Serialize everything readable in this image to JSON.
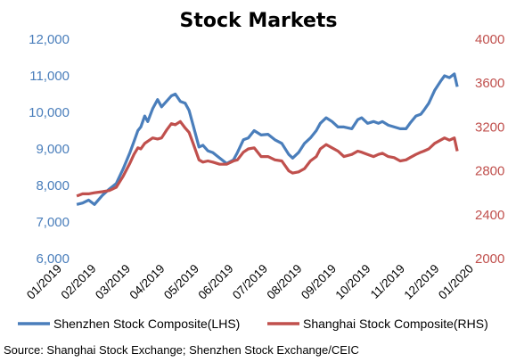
{
  "chart_data": {
    "type": "line",
    "title": "Stock Markets",
    "source": "Source: Shanghai Stock Exchange; Shenzhen Stock Exchange/CEIC",
    "x_ticks": [
      "01/2019",
      "02/2019",
      "03/2019",
      "04/2019",
      "05/2019",
      "06/2019",
      "07/2019",
      "08/2019",
      "09/2019",
      "10/2019",
      "11/2019",
      "12/2019",
      "01/2020"
    ],
    "xlim": [
      "2019-01-01",
      "2020-01-31"
    ],
    "left_axis": {
      "ylim": [
        6000,
        12000
      ],
      "ticks": [
        "6,000",
        "7,000",
        "8,000",
        "9,000",
        "10,000",
        "11,000",
        "12,000"
      ],
      "color": "#4a7ebb"
    },
    "right_axis": {
      "ylim": [
        2000,
        4000
      ],
      "ticks": [
        "2000",
        "2400",
        "2800",
        "3200",
        "3600",
        "4000"
      ],
      "color": "#c0504d"
    },
    "legend_position": "bottom",
    "grid": false,
    "series": [
      {
        "name": "Shenzhen Stock Composite(LHS)",
        "axis": "left",
        "color": "#4a7ebb",
        "x": [
          "2019-01-02",
          "2019-01-08",
          "2019-01-14",
          "2019-01-20",
          "2019-01-28",
          "2019-02-04",
          "2019-02-11",
          "2019-02-18",
          "2019-02-25",
          "2019-03-01",
          "2019-03-05",
          "2019-03-08",
          "2019-03-12",
          "2019-03-15",
          "2019-03-20",
          "2019-03-25",
          "2019-03-29",
          "2019-04-03",
          "2019-04-08",
          "2019-04-12",
          "2019-04-17",
          "2019-04-22",
          "2019-04-26",
          "2019-04-30",
          "2019-05-06",
          "2019-05-10",
          "2019-05-15",
          "2019-05-20",
          "2019-05-27",
          "2019-06-03",
          "2019-06-10",
          "2019-06-14",
          "2019-06-20",
          "2019-06-25",
          "2019-07-01",
          "2019-07-08",
          "2019-07-15",
          "2019-07-22",
          "2019-07-29",
          "2019-08-05",
          "2019-08-09",
          "2019-08-15",
          "2019-08-21",
          "2019-08-27",
          "2019-09-02",
          "2019-09-06",
          "2019-09-12",
          "2019-09-18",
          "2019-09-24",
          "2019-09-30",
          "2019-10-08",
          "2019-10-14",
          "2019-10-18",
          "2019-10-24",
          "2019-10-30",
          "2019-11-04",
          "2019-11-08",
          "2019-11-14",
          "2019-11-20",
          "2019-11-26",
          "2019-12-02",
          "2019-12-06",
          "2019-12-12",
          "2019-12-17",
          "2019-12-20",
          "2019-12-25",
          "2019-12-31",
          "2020-01-06",
          "2020-01-10",
          "2020-01-15",
          "2020-01-20",
          "2020-01-23"
        ],
        "values": [
          7480,
          7520,
          7600,
          7480,
          7730,
          7900,
          8050,
          8450,
          8900,
          9200,
          9500,
          9600,
          9900,
          9750,
          10100,
          10350,
          10150,
          10300,
          10450,
          10500,
          10300,
          10250,
          10050,
          9650,
          9050,
          9100,
          8950,
          8900,
          8750,
          8600,
          8700,
          8900,
          9250,
          9300,
          9500,
          9380,
          9400,
          9250,
          9150,
          8850,
          8750,
          8900,
          9150,
          9300,
          9500,
          9700,
          9850,
          9750,
          9600,
          9600,
          9550,
          9800,
          9850,
          9700,
          9750,
          9700,
          9750,
          9650,
          9600,
          9550,
          9550,
          9700,
          9900,
          9950,
          10050,
          10250,
          10600,
          10850,
          11000,
          10950,
          11050,
          10700
        ]
      },
      {
        "name": "Shanghai Stock Composite(RHS)",
        "axis": "right",
        "color": "#c0504d",
        "x": [
          "2019-01-02",
          "2019-01-08",
          "2019-01-14",
          "2019-01-20",
          "2019-01-28",
          "2019-02-04",
          "2019-02-11",
          "2019-02-18",
          "2019-02-25",
          "2019-03-01",
          "2019-03-05",
          "2019-03-08",
          "2019-03-12",
          "2019-03-15",
          "2019-03-20",
          "2019-03-25",
          "2019-03-29",
          "2019-04-03",
          "2019-04-08",
          "2019-04-12",
          "2019-04-17",
          "2019-04-22",
          "2019-04-26",
          "2019-04-30",
          "2019-05-06",
          "2019-05-10",
          "2019-05-15",
          "2019-05-20",
          "2019-05-27",
          "2019-06-03",
          "2019-06-10",
          "2019-06-14",
          "2019-06-20",
          "2019-06-25",
          "2019-07-01",
          "2019-07-08",
          "2019-07-15",
          "2019-07-22",
          "2019-07-29",
          "2019-08-05",
          "2019-08-09",
          "2019-08-15",
          "2019-08-21",
          "2019-08-27",
          "2019-09-02",
          "2019-09-06",
          "2019-09-12",
          "2019-09-18",
          "2019-09-24",
          "2019-09-30",
          "2019-10-08",
          "2019-10-14",
          "2019-10-18",
          "2019-10-24",
          "2019-10-30",
          "2019-11-04",
          "2019-11-08",
          "2019-11-14",
          "2019-11-20",
          "2019-11-26",
          "2019-12-02",
          "2019-12-06",
          "2019-12-12",
          "2019-12-17",
          "2019-12-20",
          "2019-12-25",
          "2019-12-31",
          "2020-01-06",
          "2020-01-10",
          "2020-01-15",
          "2020-01-20",
          "2020-01-23"
        ],
        "values": [
          2570,
          2590,
          2590,
          2600,
          2610,
          2620,
          2650,
          2750,
          2870,
          2950,
          3010,
          3000,
          3050,
          3070,
          3100,
          3090,
          3100,
          3170,
          3230,
          3220,
          3250,
          3190,
          3150,
          3050,
          2900,
          2880,
          2890,
          2880,
          2860,
          2860,
          2890,
          2900,
          2970,
          3000,
          3010,
          2930,
          2930,
          2900,
          2890,
          2800,
          2780,
          2790,
          2820,
          2890,
          2930,
          3000,
          3040,
          3010,
          2980,
          2930,
          2950,
          2980,
          2970,
          2950,
          2930,
          2950,
          2960,
          2930,
          2920,
          2890,
          2900,
          2920,
          2950,
          2970,
          2980,
          3000,
          3050,
          3080,
          3100,
          3080,
          3100,
          2980
        ]
      }
    ]
  }
}
